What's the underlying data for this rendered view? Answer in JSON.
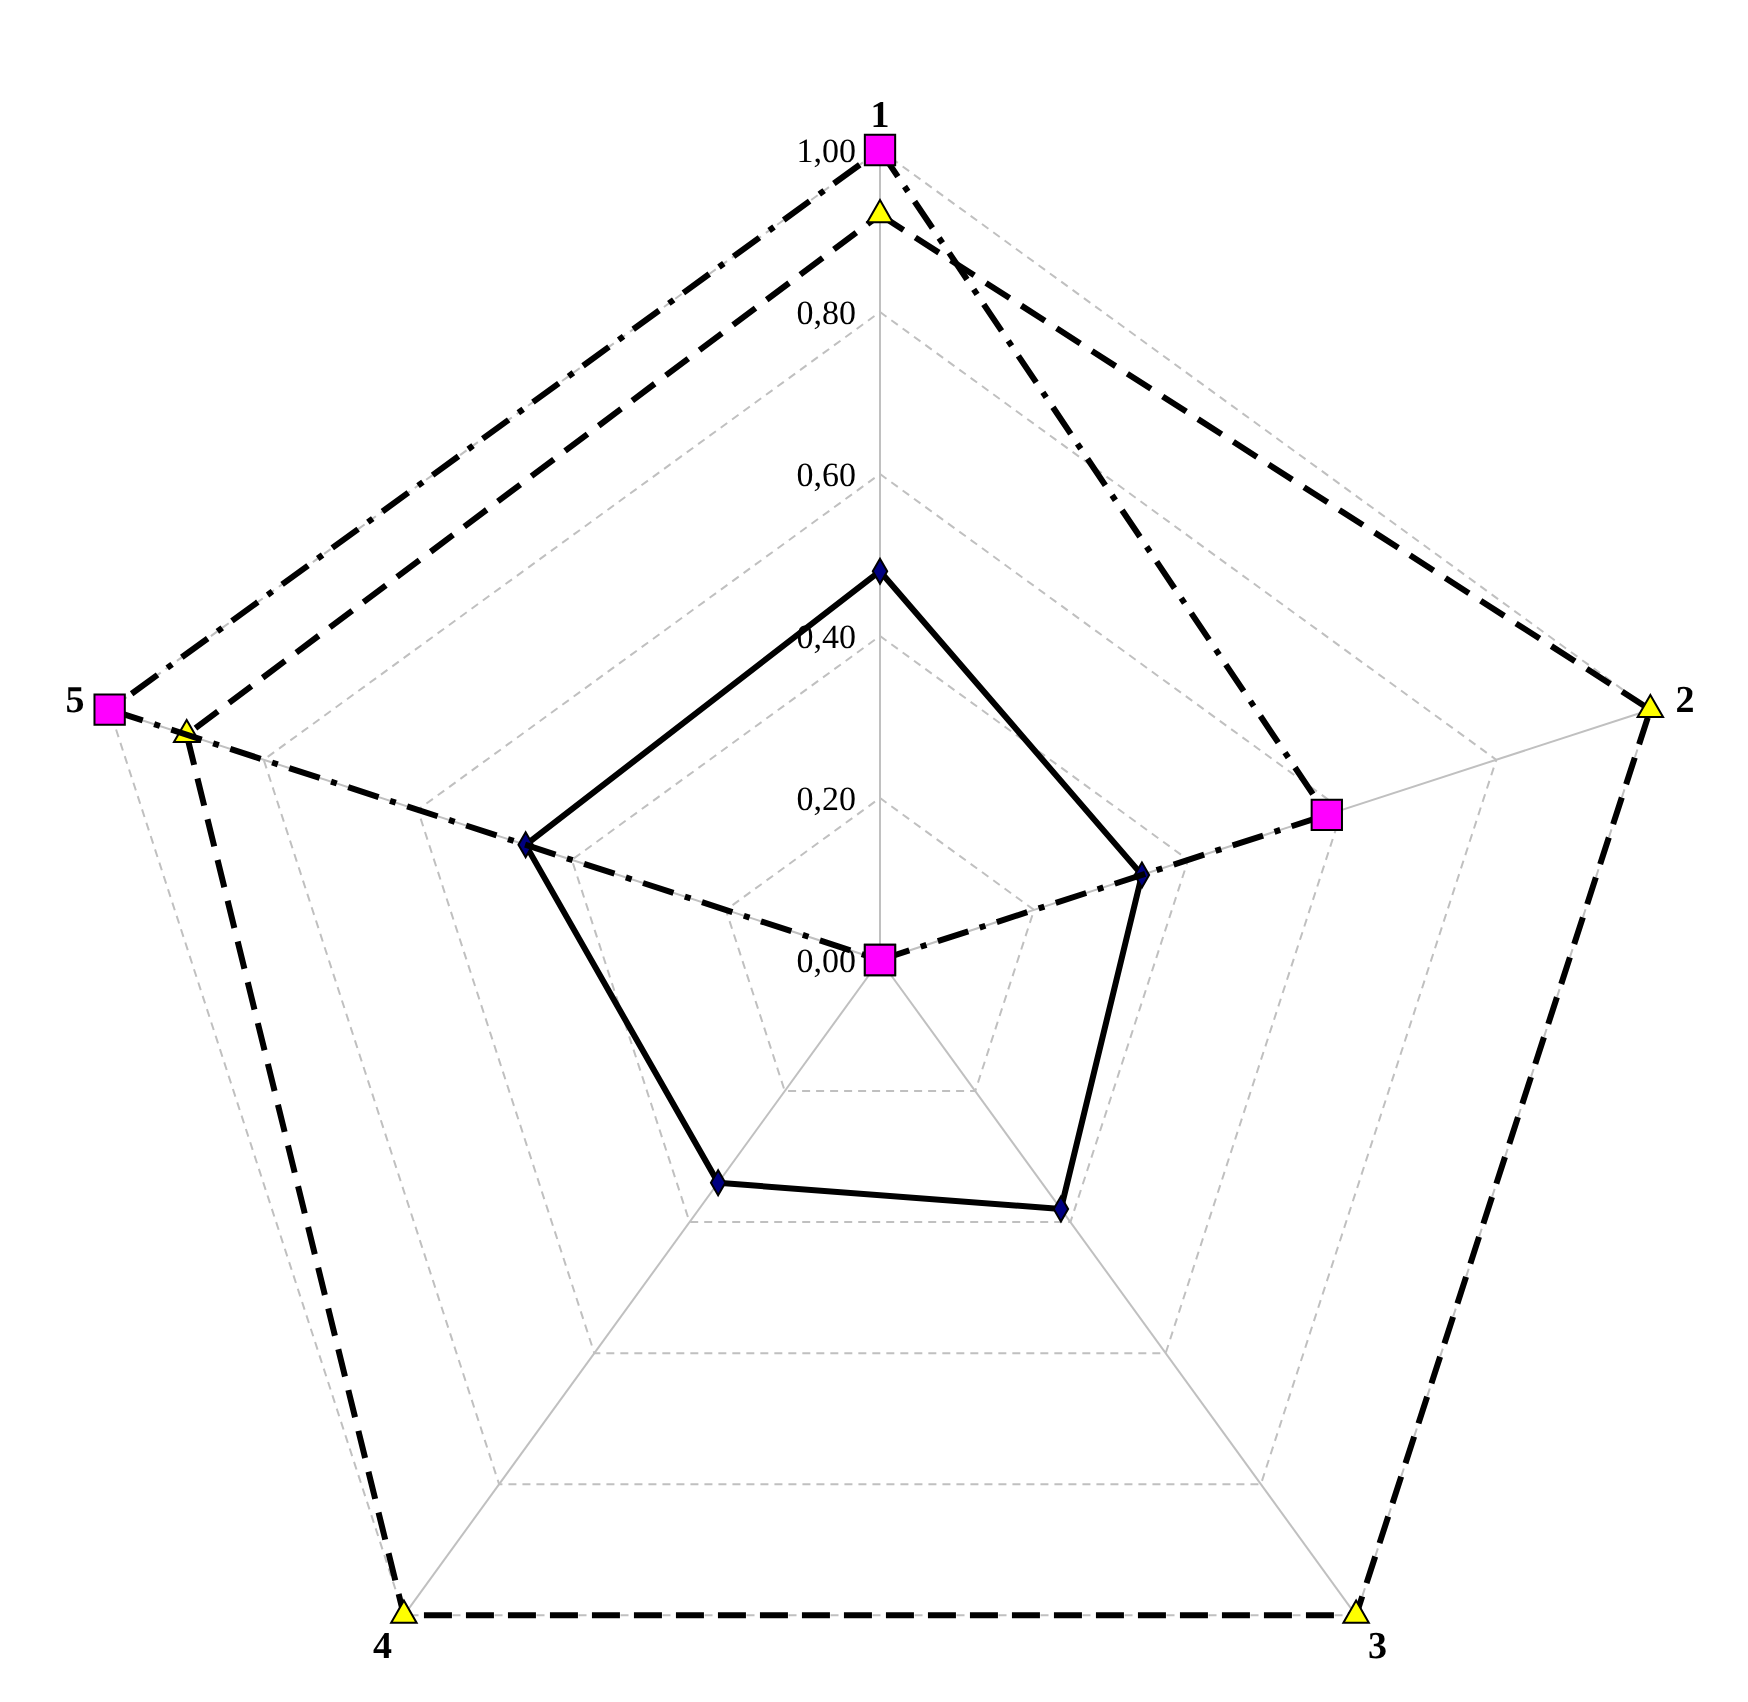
{
  "chart_data": {
    "type": "radar",
    "categories": [
      "1",
      "2",
      "3",
      "4",
      "5"
    ],
    "ylim": [
      0,
      1
    ],
    "yticks": [
      {
        "value": 0,
        "label": "0,00"
      },
      {
        "value": 0.2,
        "label": "0,20"
      },
      {
        "value": 0.4,
        "label": "0,40"
      },
      {
        "value": 0.6,
        "label": "0,60"
      },
      {
        "value": 0.8,
        "label": "0,80"
      },
      {
        "value": 1,
        "label": "1,00"
      }
    ],
    "grid": true,
    "series": [
      {
        "color": "#000000",
        "colors": [
          "#000080",
          "#000080",
          "#000080",
          "#000080",
          "#000080"
        ],
        "marker": "diamond",
        "line_style": "solid",
        "values": [
          0.48,
          0.34,
          0.38,
          0.34,
          0.46
        ]
      },
      {
        "color": "#000000",
        "colors": [
          "#ffff00",
          "#ffff00",
          "#ffff00",
          "#ffff00",
          "#ffff00"
        ],
        "marker": "triangle",
        "line_style": "dashed",
        "values": [
          0.92,
          1,
          1,
          1,
          0.9
        ]
      },
      {
        "color": "#000000",
        "colors": [
          "#ff00ff",
          "#ff00ff",
          "#ff00ff",
          "#ff00ff",
          "#ff00ff"
        ],
        "marker": "square",
        "line_style": "dashdot",
        "values": [
          1,
          0.58,
          0,
          0,
          1
        ]
      }
    ]
  }
}
